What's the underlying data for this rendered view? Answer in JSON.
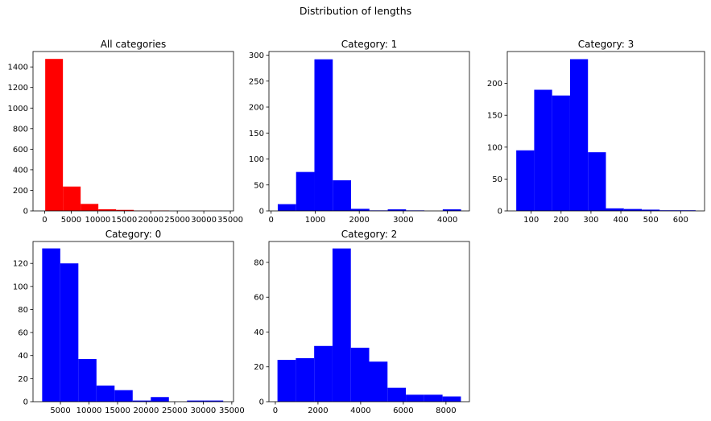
{
  "figure": {
    "title": "Distribution of lengths"
  },
  "chart_data": [
    {
      "type": "bar",
      "title": "All categories",
      "color": "#ff0000",
      "xlim": [
        -2200,
        35600
      ],
      "ylim": [
        0,
        1550
      ],
      "xticks": [
        0,
        5000,
        10000,
        15000,
        20000,
        25000,
        30000,
        35000
      ],
      "yticks": [
        0,
        200,
        400,
        600,
        800,
        1000,
        1200,
        1400
      ],
      "bin_edges": [
        100,
        3440,
        6780,
        10120,
        13460,
        16800,
        20140,
        23480,
        26820,
        30160,
        33500
      ],
      "values": [
        1478,
        237,
        68,
        16,
        10,
        3,
        4,
        0,
        1,
        1
      ]
    },
    {
      "type": "bar",
      "title": "Category: 1",
      "color": "#0000ff",
      "xlim": [
        -50,
        4500
      ],
      "ylim": [
        0,
        307
      ],
      "xticks": [
        0,
        1000,
        2000,
        3000,
        4000
      ],
      "yticks": [
        0,
        50,
        100,
        150,
        200,
        250,
        300
      ],
      "bin_edges": [
        150,
        566,
        982,
        1398,
        1814,
        2230,
        2646,
        3062,
        3478,
        3894,
        4310
      ],
      "values": [
        13,
        75,
        292,
        59,
        4,
        1,
        3,
        1,
        0,
        3
      ]
    },
    {
      "type": "bar",
      "title": "Category: 3",
      "color": "#0000ff",
      "xlim": [
        20,
        680
      ],
      "ylim": [
        0,
        250
      ],
      "xticks": [
        100,
        200,
        300,
        400,
        500,
        600
      ],
      "yticks": [
        0,
        50,
        100,
        150,
        200
      ],
      "bin_edges": [
        50,
        110,
        170,
        230,
        290,
        350,
        410,
        470,
        530,
        590,
        650
      ],
      "values": [
        95,
        190,
        181,
        238,
        92,
        4,
        3,
        2,
        1,
        1
      ]
    },
    {
      "type": "bar",
      "title": "Category: 0",
      "color": "#0000ff",
      "xlim": [
        200,
        35300
      ],
      "ylim": [
        0,
        139
      ],
      "xticks": [
        5000,
        10000,
        15000,
        20000,
        25000,
        30000,
        35000
      ],
      "yticks": [
        0,
        20,
        40,
        60,
        80,
        100,
        120
      ],
      "bin_edges": [
        1800,
        4970,
        8140,
        11310,
        14480,
        17650,
        20820,
        23990,
        27160,
        30330,
        33500
      ],
      "values": [
        133,
        120,
        37,
        14,
        10,
        1,
        4,
        0,
        1,
        1
      ]
    },
    {
      "type": "bar",
      "title": "Category: 2",
      "color": "#0000ff",
      "xlim": [
        -300,
        9100
      ],
      "ylim": [
        0,
        92
      ],
      "xticks": [
        0,
        2000,
        4000,
        6000,
        8000
      ],
      "yticks": [
        0,
        20,
        40,
        60,
        80
      ],
      "bin_edges": [
        100,
        960,
        1820,
        2680,
        3540,
        4400,
        5260,
        6120,
        6980,
        7840,
        8700
      ],
      "values": [
        24,
        25,
        32,
        88,
        31,
        23,
        8,
        4,
        4,
        3
      ]
    }
  ]
}
